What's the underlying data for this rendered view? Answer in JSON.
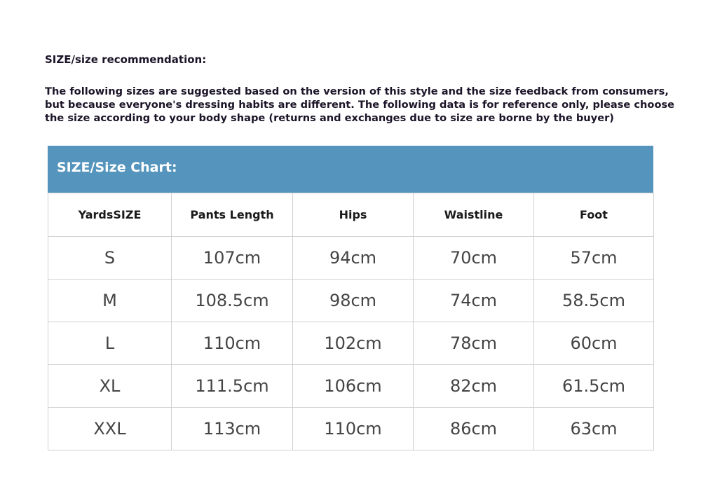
{
  "intro": {
    "title": "SIZE/size recommendation:",
    "text": "The following sizes are suggested based on the version of this style and the size feedback from consumers, but because everyone's dressing habits are different. The following data is for reference only, please choose the size according to your body shape (returns and exchanges due to size are borne by the buyer)"
  },
  "chart": {
    "title": "SIZE/Size Chart:",
    "accent_color": "#5595bd",
    "headers": [
      "YardsSIZE",
      "Pants Length",
      "Hips",
      "Waistline",
      "Foot"
    ],
    "rows": [
      [
        "S",
        "107cm",
        "94cm",
        "70cm",
        "57cm"
      ],
      [
        "M",
        "108.5cm",
        "98cm",
        "74cm",
        "58.5cm"
      ],
      [
        "L",
        "110cm",
        "102cm",
        "78cm",
        "60cm"
      ],
      [
        "XL",
        "111.5cm",
        "106cm",
        "82cm",
        "61.5cm"
      ],
      [
        "XXL",
        "113cm",
        "110cm",
        "86cm",
        "63cm"
      ]
    ]
  }
}
